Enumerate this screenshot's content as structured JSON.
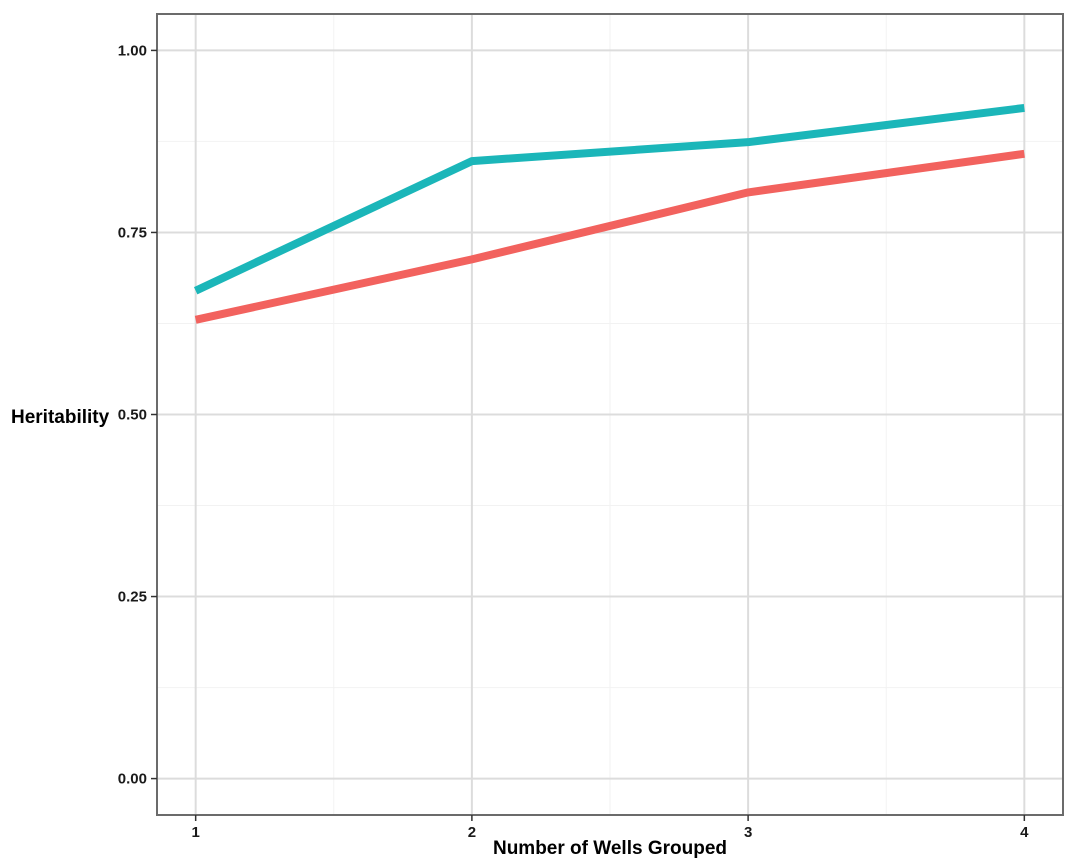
{
  "chart_data": {
    "type": "line",
    "xlabel": "Number of Wells Grouped",
    "ylabel": "Heritability",
    "x": [
      1,
      2,
      3,
      4
    ],
    "x_tick_labels": [
      "1",
      "2",
      "3",
      "4"
    ],
    "xlim": [
      0.86,
      4.14
    ],
    "ylim": [
      -0.05,
      1.05
    ],
    "y_ticks": [
      0.0,
      0.25,
      0.5,
      0.75,
      1.0
    ],
    "y_tick_labels": [
      "0.00",
      "0.25",
      "0.50",
      "0.75",
      "1.00"
    ],
    "grid": true,
    "legend": "none",
    "series": [
      {
        "values": [
          0.67,
          0.848,
          0.874,
          0.921
        ],
        "color": "#1BB6B9"
      },
      {
        "values": [
          0.63,
          0.713,
          0.805,
          0.858
        ],
        "color": "#F2625E"
      }
    ],
    "colors": {
      "panel_border": "#6b6b6b",
      "major_grid": "#dcdcdc",
      "minor_grid": "#f2f2f2"
    }
  }
}
